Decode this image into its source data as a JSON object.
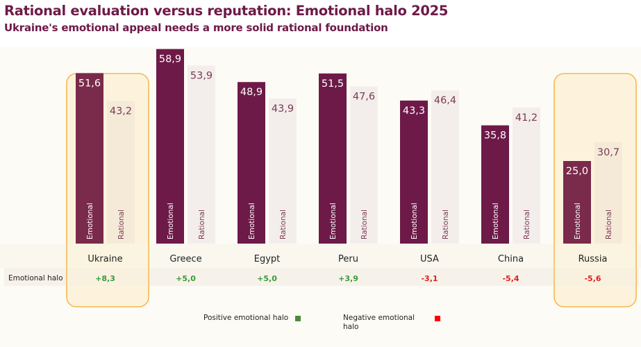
{
  "title": "Rational evaluation versus reputation: Emotional halo 2025",
  "subtitle": "Ukraine's emotional appeal needs a more solid rational foundation",
  "chart_data": {
    "type": "bar",
    "categories": [
      "Ukraine",
      "Greece",
      "Egypt",
      "Peru",
      "USA",
      "China",
      "Russia"
    ],
    "series": [
      {
        "name": "Emotional",
        "values": [
          51.6,
          58.9,
          48.9,
          51.5,
          43.3,
          35.8,
          25.0
        ]
      },
      {
        "name": "Rational",
        "values": [
          43.2,
          53.9,
          43.9,
          47.6,
          46.4,
          41.2,
          30.7
        ]
      }
    ],
    "value_labels": {
      "Emotional": [
        "51,6",
        "58,9",
        "48,9",
        "51,5",
        "43,3",
        "35,8",
        "25,0"
      ],
      "Rational": [
        "43,2",
        "53,9",
        "43,9",
        "47,6",
        "46,4",
        "41,2",
        "30,7"
      ]
    },
    "bar_text": {
      "emotional": "Emotional",
      "rational": "Rational"
    },
    "highlighted_categories": [
      "Ukraine",
      "Russia"
    ],
    "row_label": "Emotional halo",
    "halo": [
      {
        "label": "+8,3",
        "value": 8.3
      },
      {
        "label": "+5,0",
        "value": 5.0
      },
      {
        "label": "+5,0",
        "value": 5.0
      },
      {
        "label": "+3,9",
        "value": 3.9
      },
      {
        "label": "-3,1",
        "value": -3.1
      },
      {
        "label": "-5,4",
        "value": -5.4
      },
      {
        "label": "-5,6",
        "value": -5.6
      }
    ],
    "legend": {
      "positive": "Positive emotional halo",
      "negative": "Negative emotional halo"
    },
    "ylim": [
      0,
      70
    ],
    "grid": false
  },
  "colors": {
    "emotional_bar": "#6d1a48",
    "emotional_bar_highlight": "#7a2a4a",
    "rational_bar": "#f3eeeb",
    "rational_bar_highlight": "#f5ead8",
    "rational_text": "#7a3a55",
    "positive": "#3a9a3a",
    "negative": "#e02020",
    "highlight_fill": "#fdf3dd",
    "highlight_stroke": "#f5b342",
    "positive_square": "#4e8a3e",
    "negative_square": "#ff0000"
  }
}
